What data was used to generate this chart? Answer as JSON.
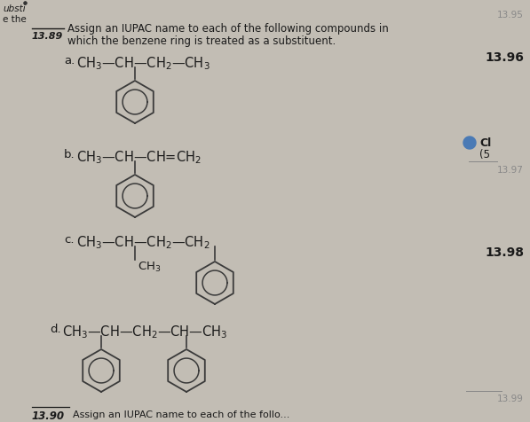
{
  "bg_color": "#c2bdb4",
  "page_color": "#ccc8bf",
  "text_color": "#1a1a1a",
  "faint_color": "#888888",
  "ring_color": "#3a3a3a",
  "title_number": "13.89",
  "title_line1": "Assign an IUPAC name to each of the following compounds in",
  "title_line2": "which the benzene ring is treated as a substituent.",
  "label_a": "a.",
  "formula_a": "CH₃—CH—CH₂—CH₃",
  "label_b": "b.",
  "formula_b": "CH₃—CH—CH═CH₂",
  "label_c": "c.",
  "formula_c": "CH₃—CH—CH₂—CH₂",
  "formula_c_sub": "CH₃",
  "label_d": "d.",
  "formula_d": "CH₃—CH—CH₂—CH—CH₃",
  "right_13_95": "13.95",
  "right_13_96": "13.96",
  "right_Cl": "Cl",
  "right_5": "(5",
  "right_13_97": "13.97",
  "right_13_98": "13.98",
  "right_13_99": "13.99",
  "bottom_num": "13.90",
  "bottom_text": "Assign an IUPAC name to each of the follo..."
}
